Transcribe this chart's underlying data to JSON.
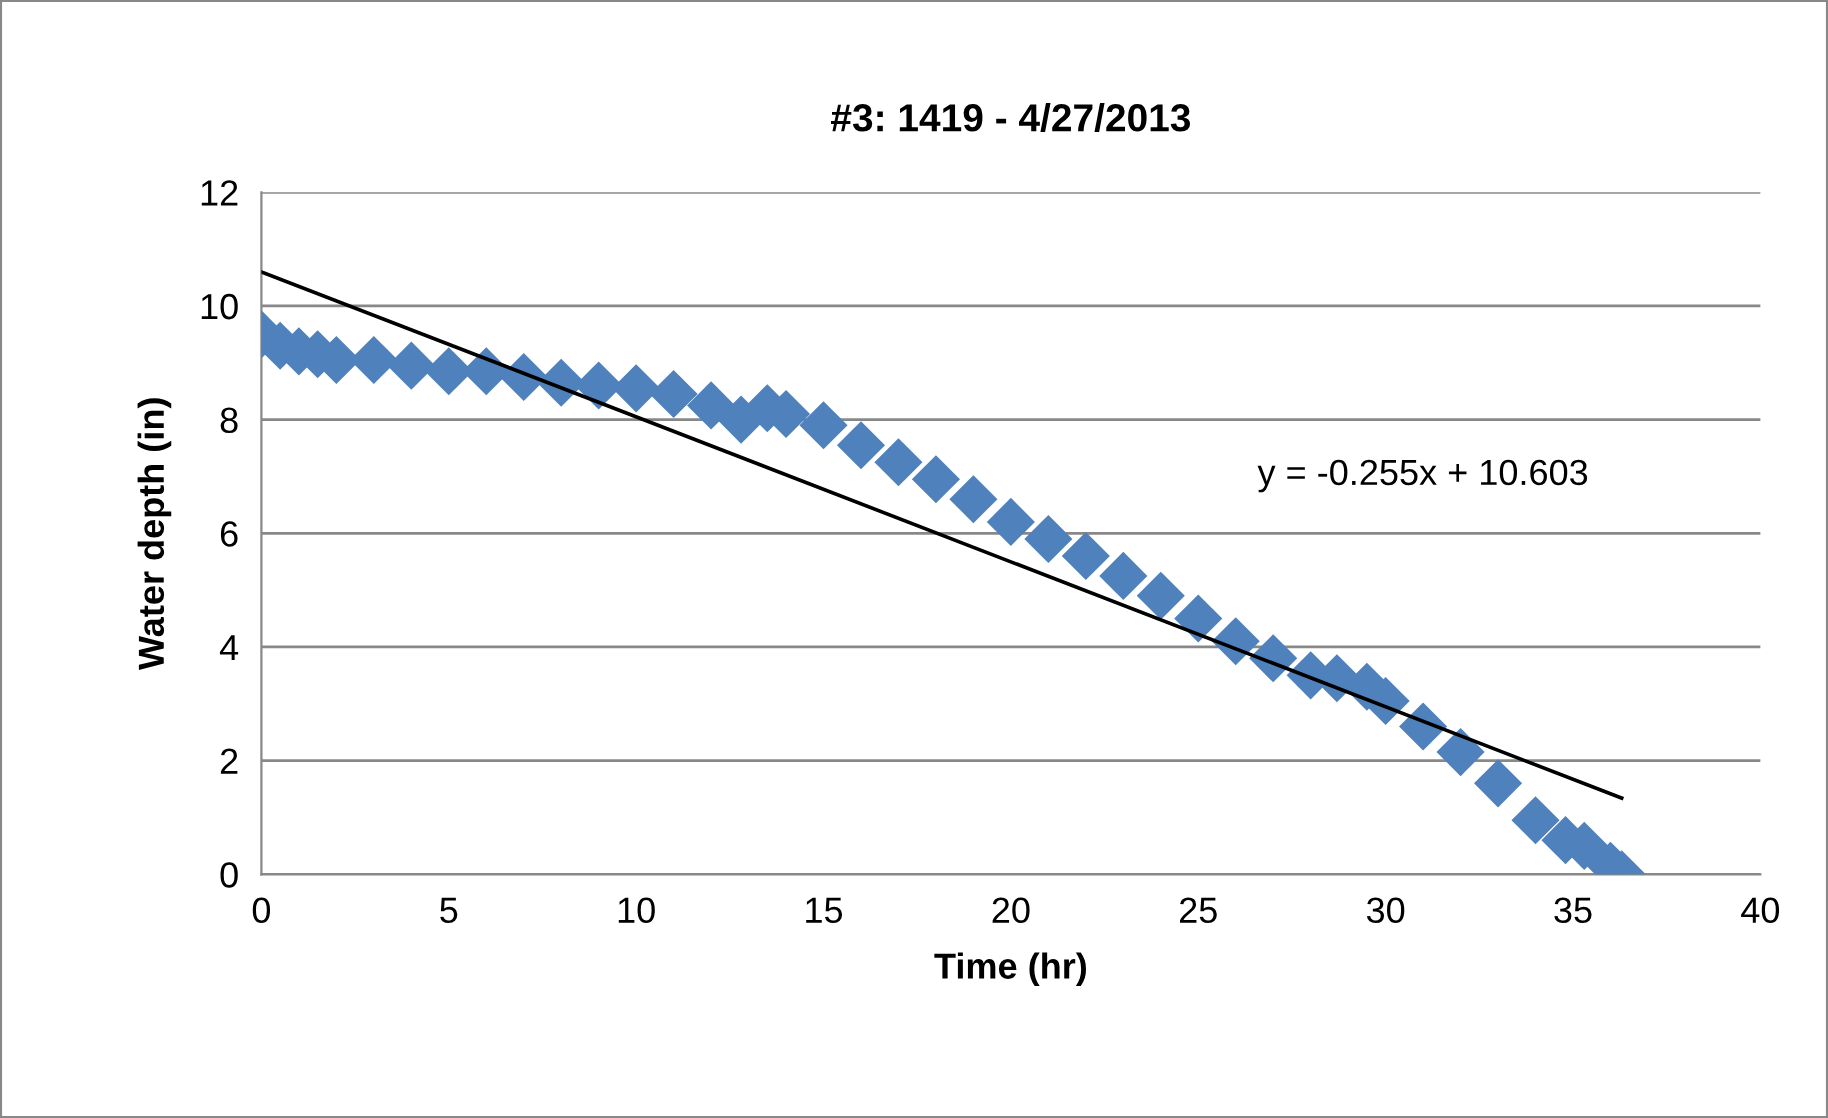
{
  "chart_data": {
    "type": "scatter",
    "title": "#3: 1419 - 4/27/2013",
    "xlabel": "Time (hr)",
    "ylabel": "Water depth (in)",
    "xlim": [
      0,
      40
    ],
    "xticks": [
      0,
      5,
      10,
      15,
      20,
      25,
      30,
      35,
      40
    ],
    "ylim": [
      0,
      12
    ],
    "yticks": [
      0,
      2,
      4,
      6,
      8,
      10,
      12
    ],
    "grid": "y",
    "series": [
      {
        "marker": "diamond",
        "color": "#4f81bd",
        "x": [
          0,
          0.5,
          1,
          1.5,
          2,
          3,
          4,
          5,
          6,
          7,
          8,
          9,
          10,
          11,
          12,
          12.8,
          13.5,
          14,
          15,
          16,
          17,
          18,
          19,
          20,
          21,
          22,
          23,
          24,
          25,
          26,
          27,
          28,
          28.7,
          29.5,
          30,
          31,
          32,
          33,
          34,
          34.8,
          35.3,
          36,
          36.3
        ],
        "values": [
          9.5,
          9.3,
          9.2,
          9.15,
          9.05,
          9.05,
          8.95,
          8.85,
          8.85,
          8.75,
          8.65,
          8.6,
          8.55,
          8.45,
          8.25,
          8.0,
          8.2,
          8.1,
          7.9,
          7.55,
          7.25,
          6.95,
          6.6,
          6.2,
          5.9,
          5.6,
          5.25,
          4.9,
          4.5,
          4.1,
          3.8,
          3.5,
          3.45,
          3.3,
          3.05,
          2.6,
          2.15,
          1.6,
          0.95,
          0.6,
          0.5,
          0.15,
          0.0
        ]
      },
      {
        "type": "line",
        "color": "#000000",
        "x": [
          0,
          36.3
        ],
        "values": [
          10.6,
          1.34
        ]
      }
    ],
    "annotations": [
      "y = -0.255x + 10.603"
    ]
  }
}
